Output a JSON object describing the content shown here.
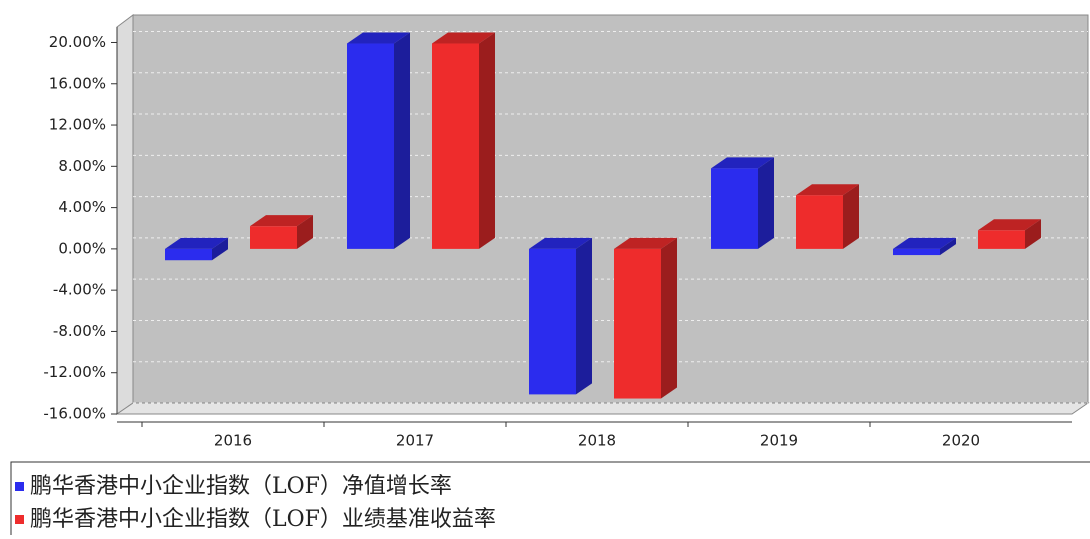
{
  "chart_data": {
    "type": "bar3d",
    "categories": [
      "2016",
      "2017",
      "2018",
      "2019",
      "2020"
    ],
    "series": [
      {
        "name": "鹏华香港中小企业指数（LOF）净值增长率",
        "color": "#2b2cee",
        "values": [
          -1.1,
          19.9,
          -14.1,
          7.8,
          -0.6
        ]
      },
      {
        "name": "鹏华香港中小企业指数（LOF）业绩基准收益率",
        "color": "#ee2c2c",
        "values": [
          2.2,
          19.9,
          -14.5,
          5.2,
          1.8
        ]
      }
    ],
    "ylim": [
      -16,
      21.5
    ],
    "yticks": [
      {
        "value": -16,
        "label": "-16.00%"
      },
      {
        "value": -12,
        "label": "-12.00%"
      },
      {
        "value": -8,
        "label": "-8.00%"
      },
      {
        "value": -4,
        "label": "-4.00%"
      },
      {
        "value": 0,
        "label": "0.00%"
      },
      {
        "value": 4,
        "label": "4.00%"
      },
      {
        "value": 8,
        "label": "8.00%"
      },
      {
        "value": 12,
        "label": "12.00%"
      },
      {
        "value": 16,
        "label": "16.00%"
      },
      {
        "value": 20,
        "label": "20.00%"
      }
    ],
    "grid": true
  }
}
